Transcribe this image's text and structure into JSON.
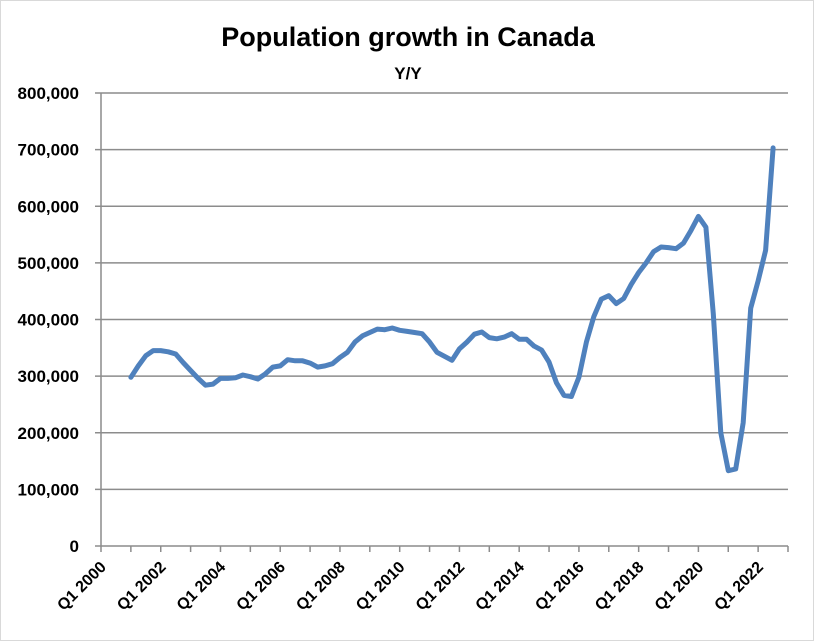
{
  "chart_data": {
    "type": "line",
    "title": "Population growth in Canada",
    "subtitle": "Y/Y",
    "xlabel": "",
    "ylabel": "",
    "ylim": [
      0,
      800000
    ],
    "yticks": [
      0,
      100000,
      200000,
      300000,
      400000,
      500000,
      600000,
      700000,
      800000
    ],
    "ytick_labels": [
      "0",
      "100,000",
      "200,000",
      "300,000",
      "400,000",
      "500,000",
      "600,000",
      "700,000",
      "800,000"
    ],
    "xtick_labels": [
      "Q1 2000",
      "Q1 2002",
      "Q1 2004",
      "Q1 2006",
      "Q1 2008",
      "Q1 2010",
      "Q1 2012",
      "Q1 2014",
      "Q1 2016",
      "Q1 2018",
      "Q1 2020",
      "Q1 2022"
    ],
    "x_start_year": 2000,
    "x_end_year": 2023,
    "grid": true,
    "series_color": "#4f81bd",
    "series": [
      {
        "x": [
          2001.0,
          2001.25,
          2001.5,
          2001.75,
          2002.0,
          2002.25,
          2002.5,
          2002.75,
          2003.0,
          2003.25,
          2003.5,
          2003.75,
          2004.0,
          2004.25,
          2004.5,
          2004.75,
          2005.0,
          2005.25,
          2005.5,
          2005.75,
          2006.0,
          2006.25,
          2006.5,
          2006.75,
          2007.0,
          2007.25,
          2007.5,
          2007.75,
          2008.0,
          2008.25,
          2008.5,
          2008.75,
          2009.0,
          2009.25,
          2009.5,
          2009.75,
          2010.0,
          2010.25,
          2010.5,
          2010.75,
          2011.0,
          2011.25,
          2011.5,
          2011.75,
          2012.0,
          2012.25,
          2012.5,
          2012.75,
          2013.0,
          2013.25,
          2013.5,
          2013.75,
          2014.0,
          2014.25,
          2014.5,
          2014.75,
          2015.0,
          2015.25,
          2015.5,
          2015.75,
          2016.0,
          2016.25,
          2016.5,
          2016.75,
          2017.0,
          2017.25,
          2017.5,
          2017.75,
          2018.0,
          2018.25,
          2018.5,
          2018.75,
          2019.0,
          2019.25,
          2019.5,
          2019.75,
          2020.0,
          2020.25,
          2020.5,
          2020.75,
          2021.0,
          2021.25,
          2021.5,
          2021.75,
          2022.0,
          2022.25,
          2022.5
        ],
        "values": [
          298000,
          318000,
          336000,
          345000,
          345000,
          343000,
          339000,
          324000,
          310000,
          296000,
          284000,
          286000,
          296000,
          296000,
          297000,
          302000,
          299000,
          295000,
          304000,
          316000,
          318000,
          329000,
          327000,
          327000,
          323000,
          316000,
          318000,
          322000,
          333000,
          342000,
          360000,
          371000,
          377000,
          383000,
          382000,
          385000,
          381000,
          379000,
          377000,
          375000,
          360000,
          342000,
          335000,
          328000,
          348000,
          360000,
          374000,
          378000,
          368000,
          366000,
          369000,
          375000,
          365000,
          365000,
          353000,
          346000,
          325000,
          288000,
          266000,
          264000,
          298000,
          360000,
          405000,
          436000,
          442000,
          428000,
          437000,
          462000,
          483000,
          500000,
          520000,
          528000,
          527000,
          525000,
          535000,
          557000,
          582000,
          563000,
          410000,
          200000,
          133000,
          136000,
          218000,
          420000,
          468000,
          522000,
          703000
        ]
      }
    ]
  }
}
